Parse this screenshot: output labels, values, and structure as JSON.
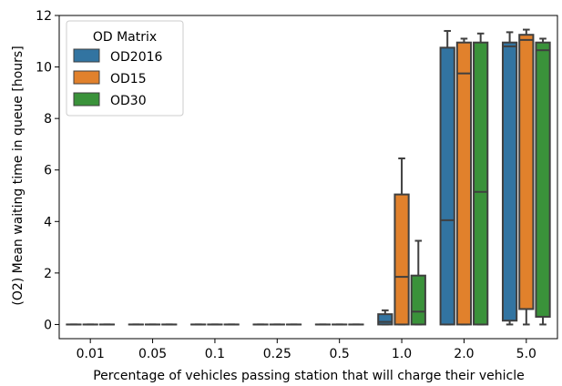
{
  "chart_data": {
    "type": "box",
    "title": "",
    "xlabel": "Percentage of vehicles passing station that will charge their vehicle",
    "ylabel": "(O2) Mean waiting time in queue [hours]",
    "categories": [
      "0.01",
      "0.05",
      "0.1",
      "0.25",
      "0.5",
      "1.0",
      "2.0",
      "5.0"
    ],
    "ylim": [
      -0.55,
      12
    ],
    "yticks": [
      0,
      2,
      4,
      6,
      8,
      10,
      12
    ],
    "grid": false,
    "legend": {
      "title": "OD Matrix",
      "placement": "top-left"
    },
    "series": [
      {
        "name": "OD2016",
        "color": "#3274a1",
        "boxes": [
          {
            "whislo": 0,
            "q1": 0,
            "med": 0,
            "q3": 0,
            "whishi": 0
          },
          {
            "whislo": 0,
            "q1": 0,
            "med": 0,
            "q3": 0,
            "whishi": 0
          },
          {
            "whislo": 0,
            "q1": 0,
            "med": 0,
            "q3": 0,
            "whishi": 0
          },
          {
            "whislo": 0,
            "q1": 0,
            "med": 0,
            "q3": 0,
            "whishi": 0
          },
          {
            "whislo": 0,
            "q1": 0,
            "med": 0,
            "q3": 0,
            "whishi": 0
          },
          {
            "whislo": 0,
            "q1": 0,
            "med": 0.1,
            "q3": 0.4,
            "whishi": 0.55
          },
          {
            "whislo": 0,
            "q1": 0,
            "med": 4.05,
            "q3": 10.75,
            "whishi": 11.4
          },
          {
            "whislo": 0,
            "q1": 0.15,
            "med": 10.8,
            "q3": 10.95,
            "whishi": 11.35
          }
        ]
      },
      {
        "name": "OD15",
        "color": "#e1812c",
        "boxes": [
          {
            "whislo": 0,
            "q1": 0,
            "med": 0,
            "q3": 0,
            "whishi": 0
          },
          {
            "whislo": 0,
            "q1": 0,
            "med": 0,
            "q3": 0,
            "whishi": 0
          },
          {
            "whislo": 0,
            "q1": 0,
            "med": 0,
            "q3": 0,
            "whishi": 0
          },
          {
            "whislo": 0,
            "q1": 0,
            "med": 0,
            "q3": 0,
            "whishi": 0
          },
          {
            "whislo": 0,
            "q1": 0,
            "med": 0,
            "q3": 0,
            "whishi": 0
          },
          {
            "whislo": 0,
            "q1": 0,
            "med": 1.85,
            "q3": 5.05,
            "whishi": 6.45
          },
          {
            "whislo": 0,
            "q1": 0,
            "med": 9.75,
            "q3": 10.95,
            "whishi": 11.1
          },
          {
            "whislo": 0,
            "q1": 0.6,
            "med": 11.05,
            "q3": 11.25,
            "whishi": 11.45
          }
        ]
      },
      {
        "name": "OD30",
        "color": "#3a923a",
        "boxes": [
          {
            "whislo": 0,
            "q1": 0,
            "med": 0,
            "q3": 0,
            "whishi": 0
          },
          {
            "whislo": 0,
            "q1": 0,
            "med": 0,
            "q3": 0,
            "whishi": 0
          },
          {
            "whislo": 0,
            "q1": 0,
            "med": 0,
            "q3": 0,
            "whishi": 0
          },
          {
            "whislo": 0,
            "q1": 0,
            "med": 0,
            "q3": 0,
            "whishi": 0
          },
          {
            "whislo": 0,
            "q1": 0,
            "med": 0,
            "q3": 0,
            "whishi": 0
          },
          {
            "whislo": 0,
            "q1": 0,
            "med": 0.5,
            "q3": 1.9,
            "whishi": 3.25
          },
          {
            "whislo": 0,
            "q1": 0,
            "med": 5.15,
            "q3": 10.95,
            "whishi": 11.3
          },
          {
            "whislo": 0,
            "q1": 0.3,
            "med": 10.65,
            "q3": 10.95,
            "whishi": 11.1
          }
        ]
      }
    ]
  }
}
